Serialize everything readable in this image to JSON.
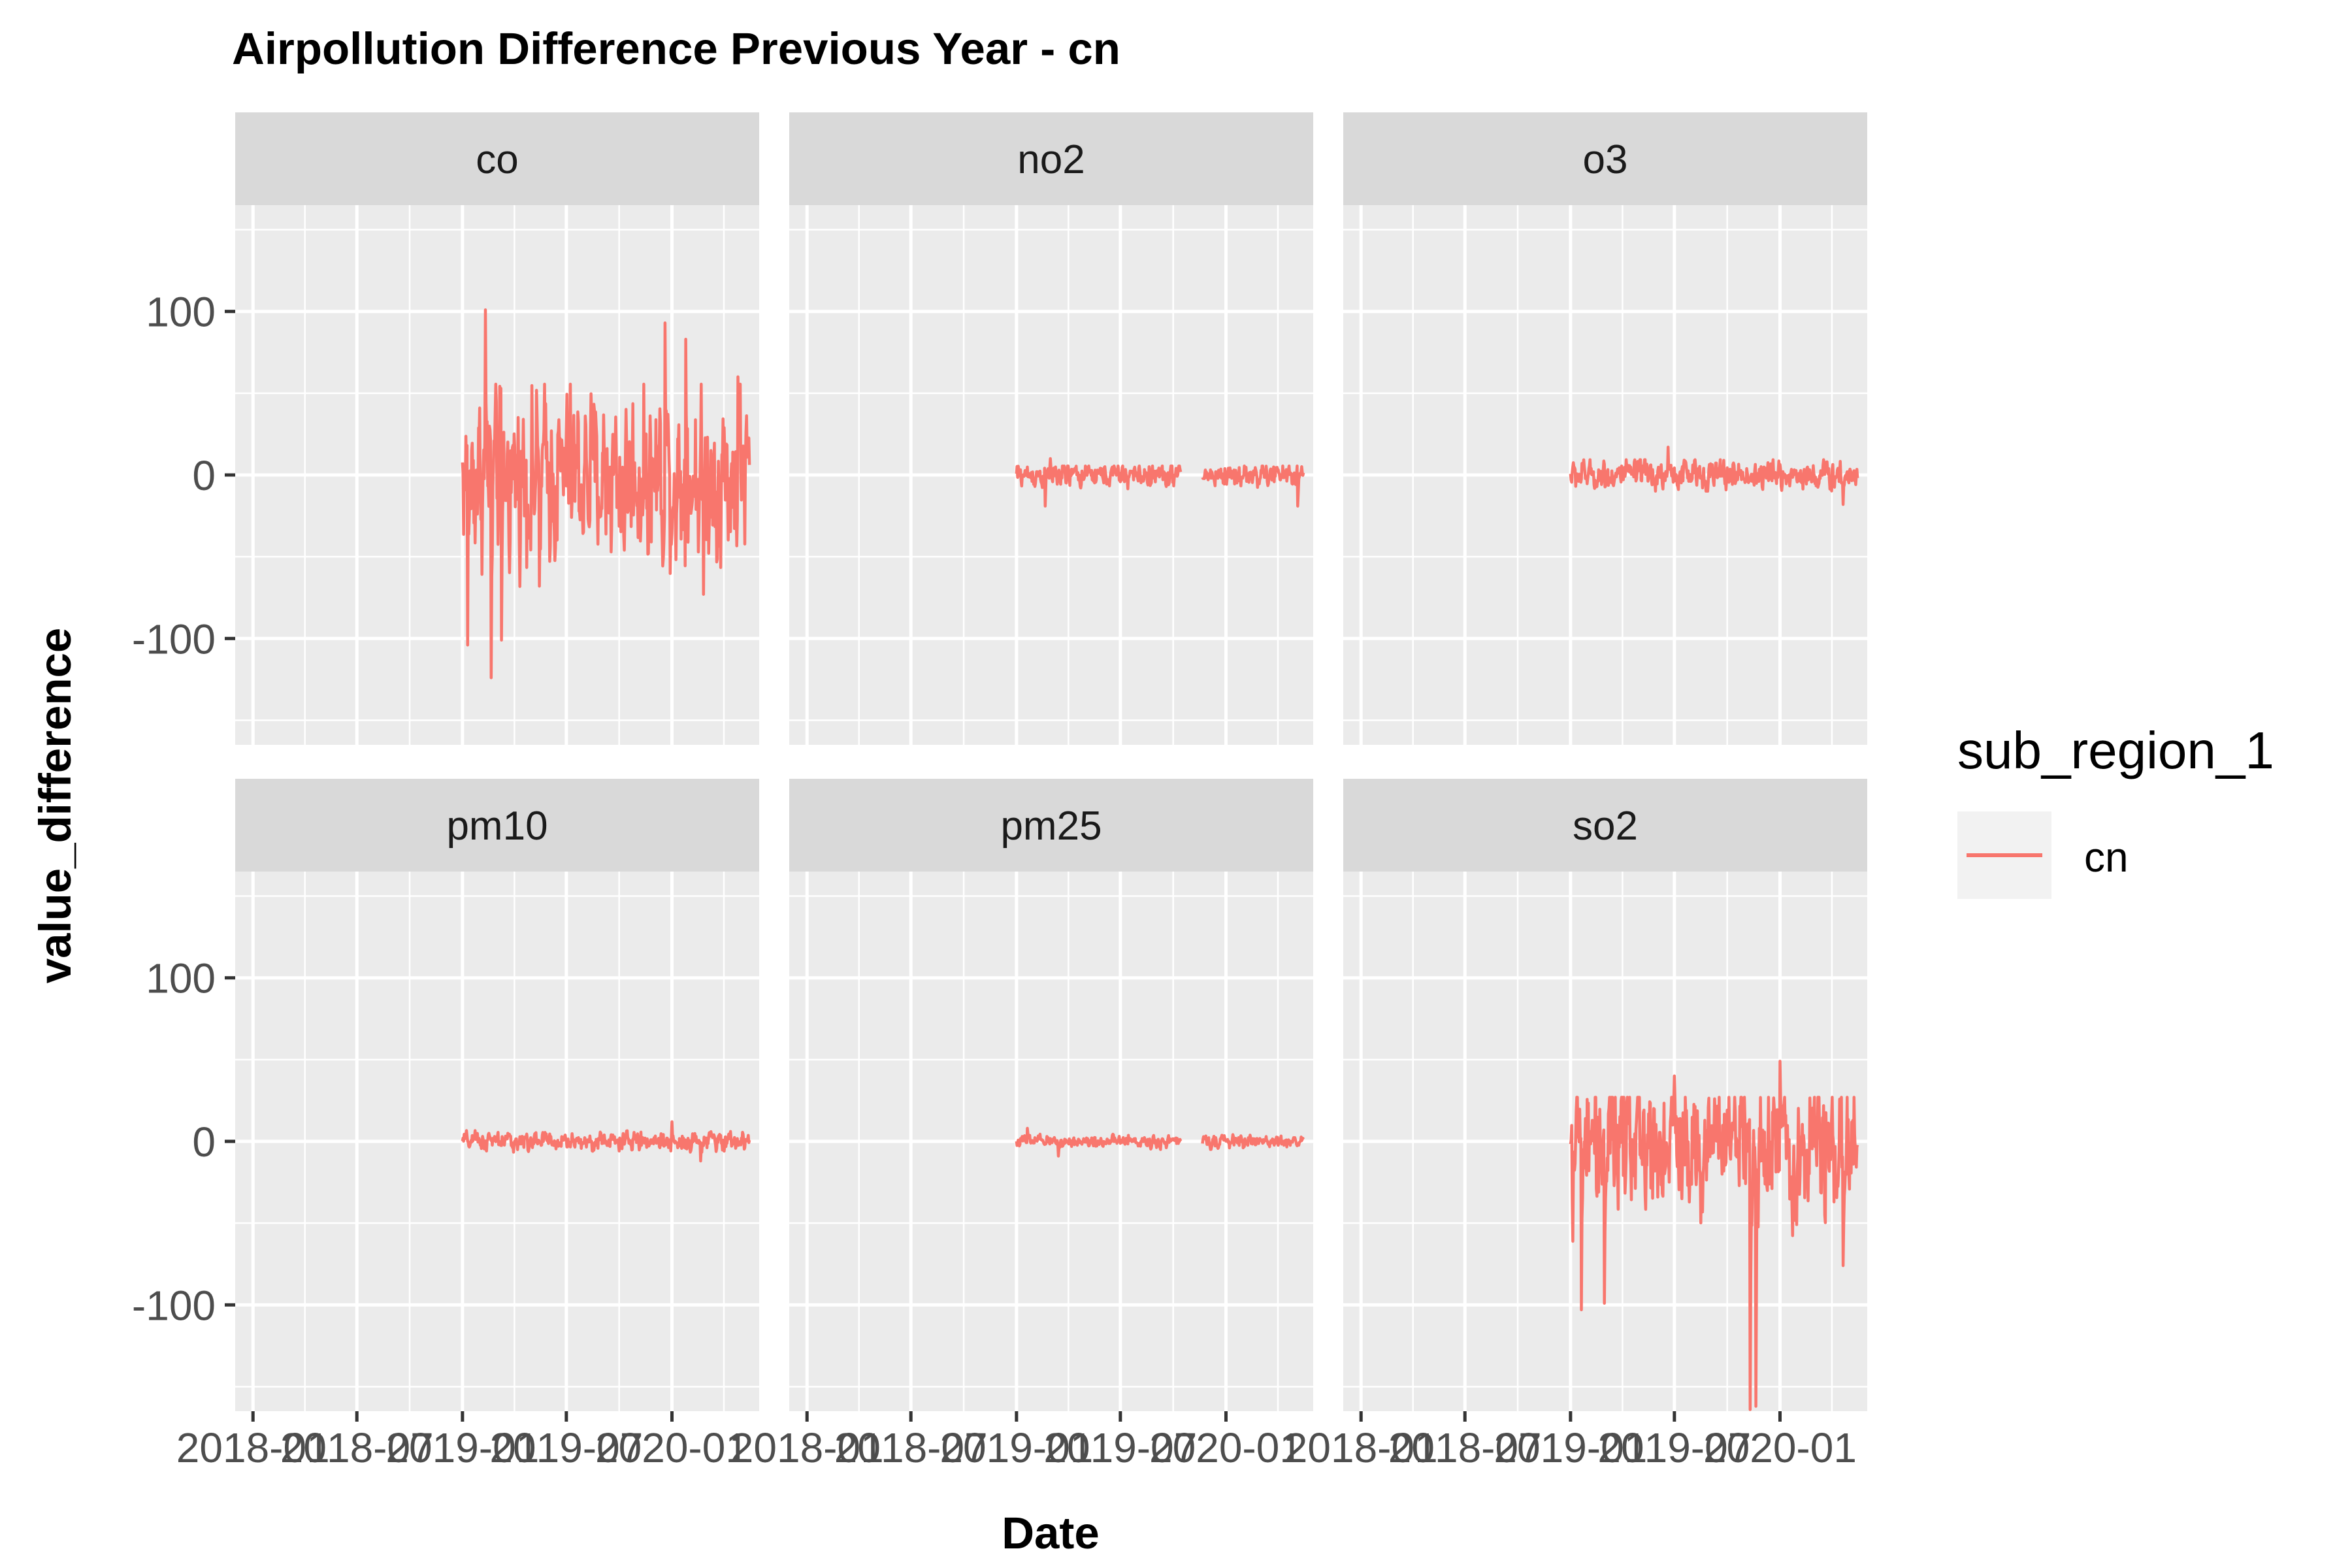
{
  "chart_data": {
    "type": "line",
    "title": "Airpollution Difference Previous Year - cn",
    "xlabel": "Date",
    "ylabel": "value_difference",
    "x_tick_labels": [
      "2018-01",
      "2018-07",
      "2019-01",
      "2019-07",
      "2020-01"
    ],
    "x_tick_dates": [
      "2018-01-01",
      "2018-07-01",
      "2019-01-01",
      "2019-07-01",
      "2020-01-01"
    ],
    "xlim": [
      "2017-12-01",
      "2020-06-01"
    ],
    "ylim": [
      -165,
      165
    ],
    "y_ticks": [
      -100,
      0,
      100
    ],
    "y_tick_labels": [
      "-100",
      "0",
      "100"
    ],
    "grid": true,
    "legend": {
      "title": "sub_region_1",
      "position": "right",
      "entries": [
        {
          "label": "cn",
          "color": "#F8766D"
        }
      ]
    },
    "series_color": "#F8766D",
    "panels": [
      {
        "name": "co",
        "start": "2019-01-01",
        "end": "2020-05-15",
        "gap": [],
        "spread": 28,
        "min": -124,
        "max": 101,
        "extremes": [
          [
            "2019-01-10",
            -104
          ],
          [
            "2019-02-10",
            101
          ],
          [
            "2019-02-20",
            -124
          ],
          [
            "2019-03-10",
            -101
          ],
          [
            "2019-05-15",
            -68
          ],
          [
            "2019-10-10",
            -46
          ],
          [
            "2019-12-20",
            93
          ],
          [
            "2020-01-25",
            83
          ],
          [
            "2020-02-25",
            -73
          ],
          [
            "2020-04-25",
            60
          ]
        ]
      },
      {
        "name": "no2",
        "start": "2019-01-01",
        "end": "2020-05-15",
        "gap": [
          "2019-10-15",
          "2019-11-20"
        ],
        "spread": 4,
        "min": -19,
        "max": 10,
        "extremes": [
          [
            "2019-02-20",
            -19
          ],
          [
            "2019-03-01",
            10
          ],
          [
            "2020-05-05",
            -19
          ]
        ]
      },
      {
        "name": "o3",
        "start": "2019-01-01",
        "end": "2020-05-15",
        "gap": [],
        "spread": 5,
        "min": -18,
        "max": 17,
        "extremes": [
          [
            "2019-06-20",
            17
          ],
          [
            "2020-04-20",
            -18
          ]
        ]
      },
      {
        "name": "pm10",
        "start": "2019-01-01",
        "end": "2020-05-15",
        "gap": [],
        "spread": 3,
        "min": -12,
        "max": 12,
        "extremes": [
          [
            "2020-01-01",
            12
          ],
          [
            "2020-02-20",
            -12
          ]
        ]
      },
      {
        "name": "pm25",
        "start": "2019-01-01",
        "end": "2020-05-15",
        "gap": [
          "2019-10-15",
          "2019-11-20"
        ],
        "spread": 2,
        "min": -9,
        "max": 8,
        "extremes": [
          [
            "2019-03-15",
            -9
          ],
          [
            "2019-01-20",
            8
          ]
        ]
      },
      {
        "name": "so2",
        "start": "2019-01-01",
        "end": "2020-05-15",
        "gap": [],
        "spread": 22,
        "min": -164,
        "max": 49,
        "extremes": [
          [
            "2019-01-20",
            -103
          ],
          [
            "2019-03-01",
            -99
          ],
          [
            "2019-07-01",
            40
          ],
          [
            "2019-11-10",
            -164
          ],
          [
            "2019-11-20",
            -162
          ],
          [
            "2020-01-01",
            49
          ],
          [
            "2020-04-20",
            -76
          ]
        ]
      }
    ]
  }
}
